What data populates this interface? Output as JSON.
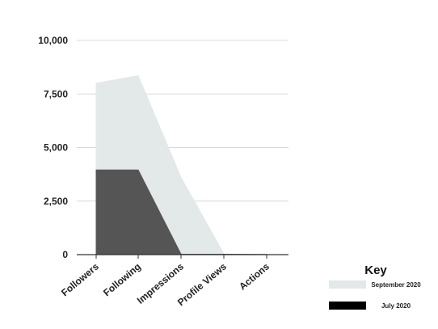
{
  "chart_data": {
    "type": "area",
    "title": "",
    "xlabel": "",
    "ylabel": "",
    "categories": [
      "Followers",
      "Following",
      "Impressions",
      "Profile Views",
      "Actions"
    ],
    "ylim": [
      0,
      10000
    ],
    "yticks": [
      0,
      2500,
      5000,
      7500,
      10000
    ],
    "ytick_labels": [
      "0",
      "2,500",
      "5,000",
      "7,500",
      "10,000"
    ],
    "grid": true,
    "legend_position": "bottom-right",
    "legend_title": "Key",
    "series": [
      {
        "name": "September 2020",
        "color": "#e3e8e8",
        "values": [
          8000,
          8350,
          3600,
          30,
          10
        ]
      },
      {
        "name": "July 2020",
        "color": "#555555",
        "values": [
          3950,
          3950,
          20,
          20,
          10
        ]
      }
    ]
  }
}
